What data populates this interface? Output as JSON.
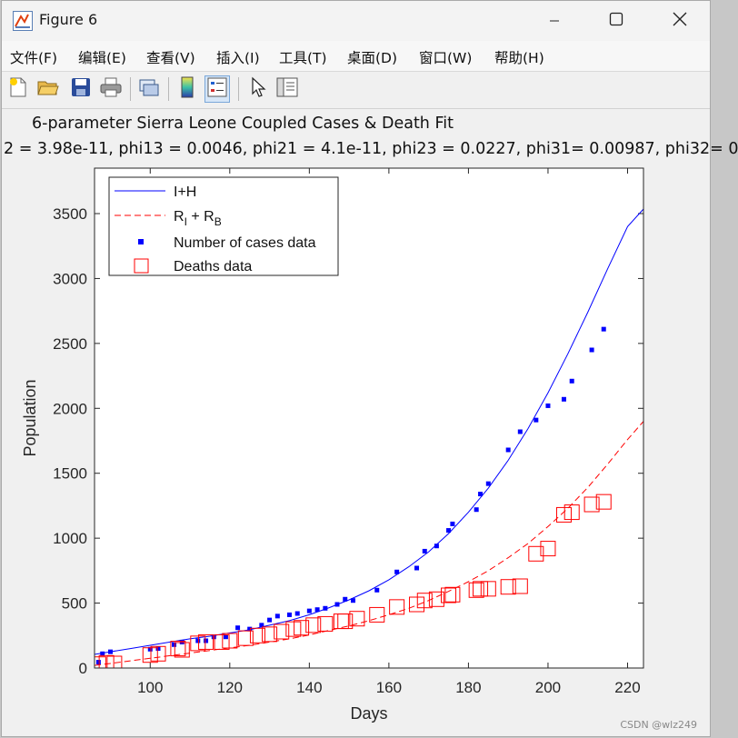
{
  "window": {
    "title": "Figure 6",
    "controls": {
      "minimize": "minimize",
      "maximize": "maximize",
      "close": "close"
    }
  },
  "menu": [
    "文件(F)",
    "编辑(E)",
    "查看(V)",
    "插入(I)",
    "工具(T)",
    "桌面(D)",
    "窗口(W)",
    "帮助(H)"
  ],
  "toolbar": [
    "new-figure-icon",
    "open-file-icon",
    "save-icon",
    "print-icon",
    "link-icon",
    "colorbar-icon",
    "legend-icon",
    "pointer-icon",
    "property-editor-icon"
  ],
  "watermark": "CSDN @wlz249",
  "chart_data": {
    "type": "line",
    "title": "6-parameter Sierra Leone Coupled Cases & Death Fit",
    "subtitle": "2 = 3.98e-11, phi13 = 0.0046, phi21 = 4.1e-11, phi23 = 0.0227, phi31= 0.00987, phi32= 0",
    "xlabel": "Days",
    "ylabel": "Population",
    "xlim": [
      86,
      224
    ],
    "ylim": [
      0,
      3850
    ],
    "xticks": [
      100,
      120,
      140,
      160,
      180,
      200,
      220
    ],
    "yticks": [
      0,
      500,
      1000,
      1500,
      2000,
      2500,
      3000,
      3500
    ],
    "legend": {
      "placement": "top-left",
      "entries": [
        {
          "label": "I+H",
          "color": "#0000ff",
          "style": "solid-line"
        },
        {
          "label": "R",
          "sub1": "I",
          "mid": " + R",
          "sub2": "B",
          "color": "#ff0000",
          "style": "dashed-line"
        },
        {
          "label": "Number of cases data",
          "color": "#0000ff",
          "style": "square-marker"
        },
        {
          "label": "Deaths data",
          "color": "#ff0000",
          "style": "open-square"
        }
      ]
    },
    "series": [
      {
        "name": "I+H",
        "color": "#0000ff",
        "style": "solid",
        "x": [
          86,
          90,
          95,
          100,
          105,
          110,
          115,
          120,
          125,
          130,
          135,
          140,
          145,
          150,
          155,
          160,
          165,
          170,
          175,
          180,
          185,
          190,
          195,
          200,
          205,
          210,
          215,
          220,
          224
        ],
        "y": [
          105,
          125,
          150,
          175,
          200,
          225,
          245,
          270,
          295,
          330,
          365,
          410,
          465,
          525,
          595,
          680,
          780,
          895,
          1035,
          1200,
          1385,
          1600,
          1845,
          2120,
          2420,
          2740,
          3075,
          3400,
          3535
        ]
      },
      {
        "name": "R_I + R_B",
        "color": "#ff0000",
        "style": "dashed",
        "x": [
          86,
          90,
          95,
          100,
          105,
          110,
          115,
          120,
          125,
          130,
          135,
          140,
          145,
          150,
          155,
          160,
          165,
          170,
          175,
          180,
          185,
          190,
          195,
          200,
          205,
          210,
          215,
          220,
          224
        ],
        "y": [
          20,
          35,
          55,
          75,
          95,
          115,
          135,
          155,
          175,
          200,
          225,
          255,
          290,
          325,
          365,
          410,
          460,
          520,
          590,
          665,
          750,
          850,
          960,
          1090,
          1230,
          1390,
          1570,
          1760,
          1900
        ]
      },
      {
        "name": "Number of cases data",
        "color": "#0000ff",
        "style": "markers",
        "x": [
          87,
          88,
          90,
          100,
          102,
          106,
          108,
          112,
          114,
          116,
          119,
          122,
          125,
          128,
          130,
          132,
          135,
          137,
          140,
          142,
          144,
          147,
          149,
          151,
          157,
          162,
          167,
          169,
          172,
          175,
          176,
          182,
          183,
          185,
          190,
          193,
          197,
          200,
          204,
          206,
          211,
          214
        ],
        "y": [
          45,
          110,
          125,
          145,
          150,
          180,
          200,
          210,
          210,
          240,
          240,
          310,
          300,
          330,
          370,
          400,
          410,
          420,
          440,
          450,
          460,
          490,
          530,
          520,
          600,
          740,
          770,
          900,
          940,
          1060,
          1110,
          1220,
          1340,
          1420,
          1680,
          1820,
          1910,
          2020,
          2070,
          2210,
          2450,
          2610
        ]
      },
      {
        "name": "Deaths data",
        "color": "#ff0000",
        "style": "open-squares",
        "x": [
          87,
          89,
          91,
          100,
          102,
          107,
          108,
          112,
          114,
          118,
          120,
          124,
          127,
          130,
          133,
          136,
          138,
          141,
          144,
          148,
          149,
          152,
          157,
          162,
          167,
          169,
          172,
          175,
          176,
          182,
          183,
          185,
          190,
          193,
          197,
          200,
          204,
          206,
          211,
          214
        ],
        "y": [
          30,
          40,
          35,
          100,
          110,
          150,
          140,
          190,
          200,
          200,
          210,
          230,
          250,
          260,
          280,
          300,
          310,
          330,
          340,
          360,
          360,
          380,
          410,
          470,
          490,
          520,
          530,
          560,
          565,
          600,
          610,
          610,
          625,
          630,
          880,
          920,
          1180,
          1200,
          1260,
          1280
        ]
      }
    ]
  }
}
